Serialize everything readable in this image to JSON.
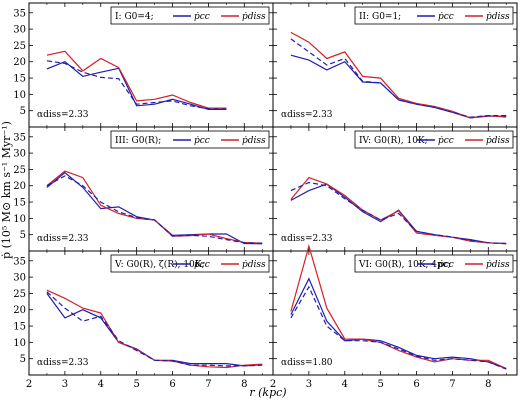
{
  "figure": {
    "ylabel": "ṗ (10⁵ M⊙ km s⁻¹ Myr⁻¹)",
    "xlabel": "r (kpc)",
    "xticks": [
      "2",
      "3",
      "4",
      "5",
      "6",
      "7",
      "8"
    ],
    "yticks": [
      "5",
      "10",
      "15",
      "20",
      "25",
      "30",
      "35"
    ],
    "colors": {
      "cc": "#1f1faf",
      "diss": "#d4202a",
      "dashed": "#1f1faf"
    }
  },
  "chart_data": [
    {
      "type": "line",
      "panel": "I",
      "legend": {
        "label": "I: G0=4;",
        "entries": [
          "ṗcc",
          "ṗdiss"
        ]
      },
      "annotation": "αdiss=2.33",
      "xlim": [
        2,
        8.8
      ],
      "ylim": [
        0,
        38
      ],
      "x": [
        2.5,
        3.0,
        3.5,
        4.0,
        4.5,
        5.0,
        5.5,
        6.0,
        6.5,
        7.0,
        7.5
      ],
      "series": [
        {
          "name": "ṗcc",
          "values": [
            17.8,
            20.0,
            15.5,
            16.8,
            18.0,
            6.5,
            7.0,
            8.5,
            7.0,
            5.4,
            5.4
          ]
        },
        {
          "name": "ṗdiss",
          "values": [
            22.0,
            23.2,
            17.2,
            21.0,
            18.2,
            8.0,
            8.5,
            9.8,
            7.5,
            5.8,
            5.8
          ]
        },
        {
          "style": "dashed",
          "values": [
            20.3,
            19.5,
            16.8,
            15.2,
            14.8,
            7.0,
            7.5,
            8.0,
            6.5,
            5.6,
            5.5
          ]
        }
      ]
    },
    {
      "type": "line",
      "panel": "II",
      "legend": {
        "label": "II: G0=1;",
        "entries": [
          "ṗcc",
          "ṗdiss"
        ]
      },
      "annotation": "αdiss=2.33",
      "xlim": [
        2,
        8.8
      ],
      "ylim": [
        0,
        38
      ],
      "x": [
        2.5,
        3.0,
        3.5,
        4.0,
        4.5,
        5.0,
        5.5,
        6.0,
        6.5,
        7.0,
        7.5,
        8.0,
        8.5
      ],
      "series": [
        {
          "name": "ṗcc",
          "values": [
            22.0,
            20.5,
            17.5,
            20.0,
            13.8,
            13.5,
            8.3,
            7.0,
            6.0,
            4.5,
            2.8,
            3.3,
            3.3
          ]
        },
        {
          "name": "ṗdiss",
          "values": [
            29.0,
            26.0,
            21.0,
            23.0,
            15.5,
            15.0,
            8.8,
            7.2,
            6.3,
            4.8,
            2.8,
            3.5,
            3.0
          ]
        },
        {
          "style": "dashed",
          "values": [
            27.0,
            23.0,
            19.0,
            21.0,
            14.0,
            13.5,
            8.3,
            7.0,
            6.0,
            4.5,
            3.0,
            3.5,
            3.5
          ]
        }
      ]
    },
    {
      "type": "line",
      "panel": "III",
      "legend": {
        "label": "III: G0(R);",
        "entries": [
          "ṗcc",
          "ṗdiss"
        ]
      },
      "annotation": "αdiss=2.33",
      "xlim": [
        2,
        8.8
      ],
      "ylim": [
        0,
        38
      ],
      "x": [
        2.5,
        3.0,
        3.5,
        4.0,
        4.5,
        5.0,
        5.5,
        6.0,
        6.5,
        7.0,
        7.5,
        8.0,
        8.5
      ],
      "series": [
        {
          "name": "ṗcc",
          "values": [
            19.5,
            24.0,
            19.5,
            13.0,
            13.5,
            10.5,
            9.5,
            4.8,
            5.0,
            5.2,
            5.2,
            2.3,
            2.2
          ]
        },
        {
          "name": "ṗdiss",
          "values": [
            20.0,
            24.5,
            22.5,
            14.0,
            11.5,
            10.0,
            9.5,
            4.5,
            4.7,
            5.2,
            3.8,
            2.6,
            2.4
          ]
        },
        {
          "style": "dashed",
          "values": [
            20.0,
            23.0,
            20.0,
            15.0,
            12.0,
            10.2,
            9.5,
            4.6,
            4.8,
            4.5,
            3.5,
            2.5,
            2.4
          ]
        }
      ]
    },
    {
      "type": "line",
      "panel": "IV",
      "legend": {
        "label": "IV: G0(R), 10K;",
        "entries": [
          "ṗcc",
          "ṗdiss"
        ]
      },
      "annotation": "αdiss=2.33",
      "xlim": [
        2,
        8.8
      ],
      "ylim": [
        0,
        38
      ],
      "x": [
        2.5,
        3.0,
        3.5,
        4.0,
        4.5,
        5.0,
        5.5,
        6.0,
        6.5,
        7.0,
        7.5,
        8.0,
        8.5
      ],
      "series": [
        {
          "name": "ṗcc",
          "values": [
            15.5,
            18.5,
            20.5,
            16.5,
            12.0,
            9.0,
            12.5,
            6.0,
            5.0,
            4.2,
            3.5,
            2.5,
            2.3
          ]
        },
        {
          "name": "ṗdiss",
          "values": [
            15.8,
            22.5,
            20.5,
            17.0,
            12.5,
            9.5,
            12.3,
            5.5,
            4.8,
            4.2,
            3.0,
            2.5,
            2.2
          ]
        },
        {
          "style": "dashed",
          "values": [
            18.5,
            21.0,
            20.0,
            16.0,
            12.5,
            9.5,
            11.5,
            6.0,
            5.0,
            4.3,
            3.2,
            2.5,
            2.3
          ]
        }
      ]
    },
    {
      "type": "line",
      "panel": "V",
      "legend": {
        "label": "V: G0(R), ζ(R), 10K;",
        "entries": [
          "ṗcc",
          "ṗdiss"
        ]
      },
      "annotation": "αdiss=2.33",
      "xlim": [
        2,
        8.8
      ],
      "ylim": [
        0,
        38
      ],
      "x": [
        2.5,
        3.0,
        3.5,
        4.0,
        4.5,
        5.0,
        5.5,
        6.0,
        6.5,
        7.0,
        7.5,
        8.0,
        8.5
      ],
      "series": [
        {
          "name": "ṗcc",
          "values": [
            25.0,
            17.5,
            20.0,
            17.5,
            10.0,
            8.0,
            4.5,
            4.5,
            3.5,
            3.5,
            3.5,
            2.8,
            3.2
          ]
        },
        {
          "name": "ṗdiss",
          "values": [
            26.0,
            23.5,
            20.5,
            19.0,
            10.0,
            7.8,
            4.5,
            4.3,
            3.0,
            2.5,
            2.3,
            3.0,
            3.3
          ]
        },
        {
          "style": "dashed",
          "values": [
            25.5,
            20.5,
            16.5,
            18.0,
            10.5,
            7.5,
            4.5,
            4.3,
            3.0,
            3.0,
            2.8,
            2.8,
            3.0
          ]
        }
      ]
    },
    {
      "type": "line",
      "panel": "VI",
      "legend": {
        "label": "VI: G0(R), 10K, 4pc;",
        "entries": [
          "ṗcc",
          "ṗdiss"
        ]
      },
      "annotation": "αdiss=1.80",
      "xlim": [
        2,
        8.8
      ],
      "ylim": [
        0,
        38
      ],
      "x": [
        2.5,
        3.0,
        3.5,
        4.0,
        4.5,
        5.0,
        5.5,
        6.0,
        6.5,
        7.0,
        7.5,
        8.0,
        8.5
      ],
      "series": [
        {
          "name": "ṗcc",
          "values": [
            18.5,
            29.5,
            16.5,
            10.5,
            11.0,
            10.5,
            8.5,
            6.0,
            5.0,
            5.5,
            5.0,
            4.0,
            2.0
          ]
        },
        {
          "name": "ṗdiss",
          "values": [
            19.5,
            39.5,
            20.5,
            11.0,
            11.0,
            10.0,
            7.5,
            5.5,
            4.0,
            5.0,
            4.5,
            4.5,
            2.0
          ]
        },
        {
          "style": "dashed",
          "values": [
            17.5,
            27.0,
            15.0,
            10.5,
            10.5,
            10.0,
            8.0,
            5.8,
            4.5,
            5.0,
            4.5,
            4.0,
            1.8
          ]
        }
      ]
    }
  ]
}
